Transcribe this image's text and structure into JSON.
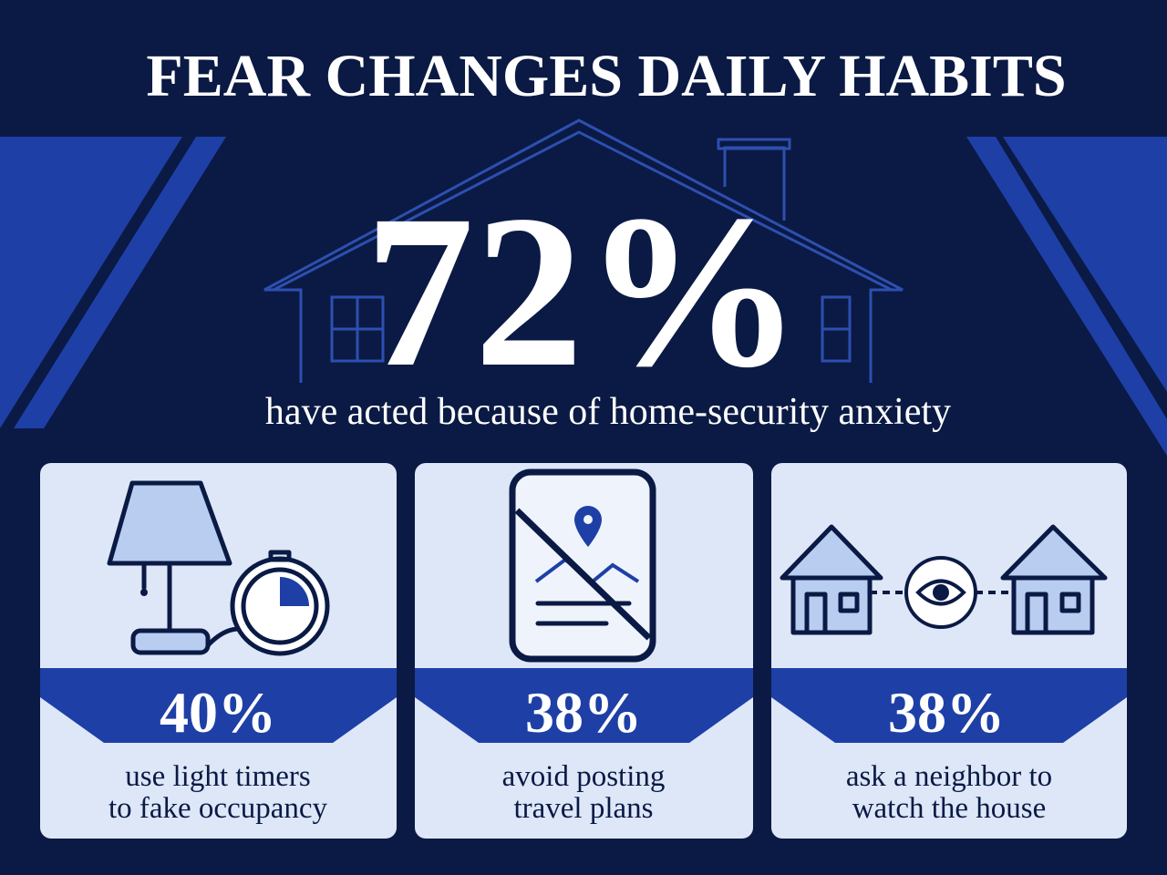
{
  "title": "FEAR CHANGES DAILY HABITS",
  "headline": {
    "stat": "72%",
    "caption": "have acted because of home-security anxiety"
  },
  "cards": [
    {
      "stat": "40%",
      "caption": [
        "use light timers",
        "to fake occupancy"
      ]
    },
    {
      "stat": "38%",
      "caption": [
        "avoid posting",
        "travel plans"
      ]
    },
    {
      "stat": "38%",
      "caption": [
        "ask a neighbor to",
        "watch the house"
      ]
    }
  ]
}
